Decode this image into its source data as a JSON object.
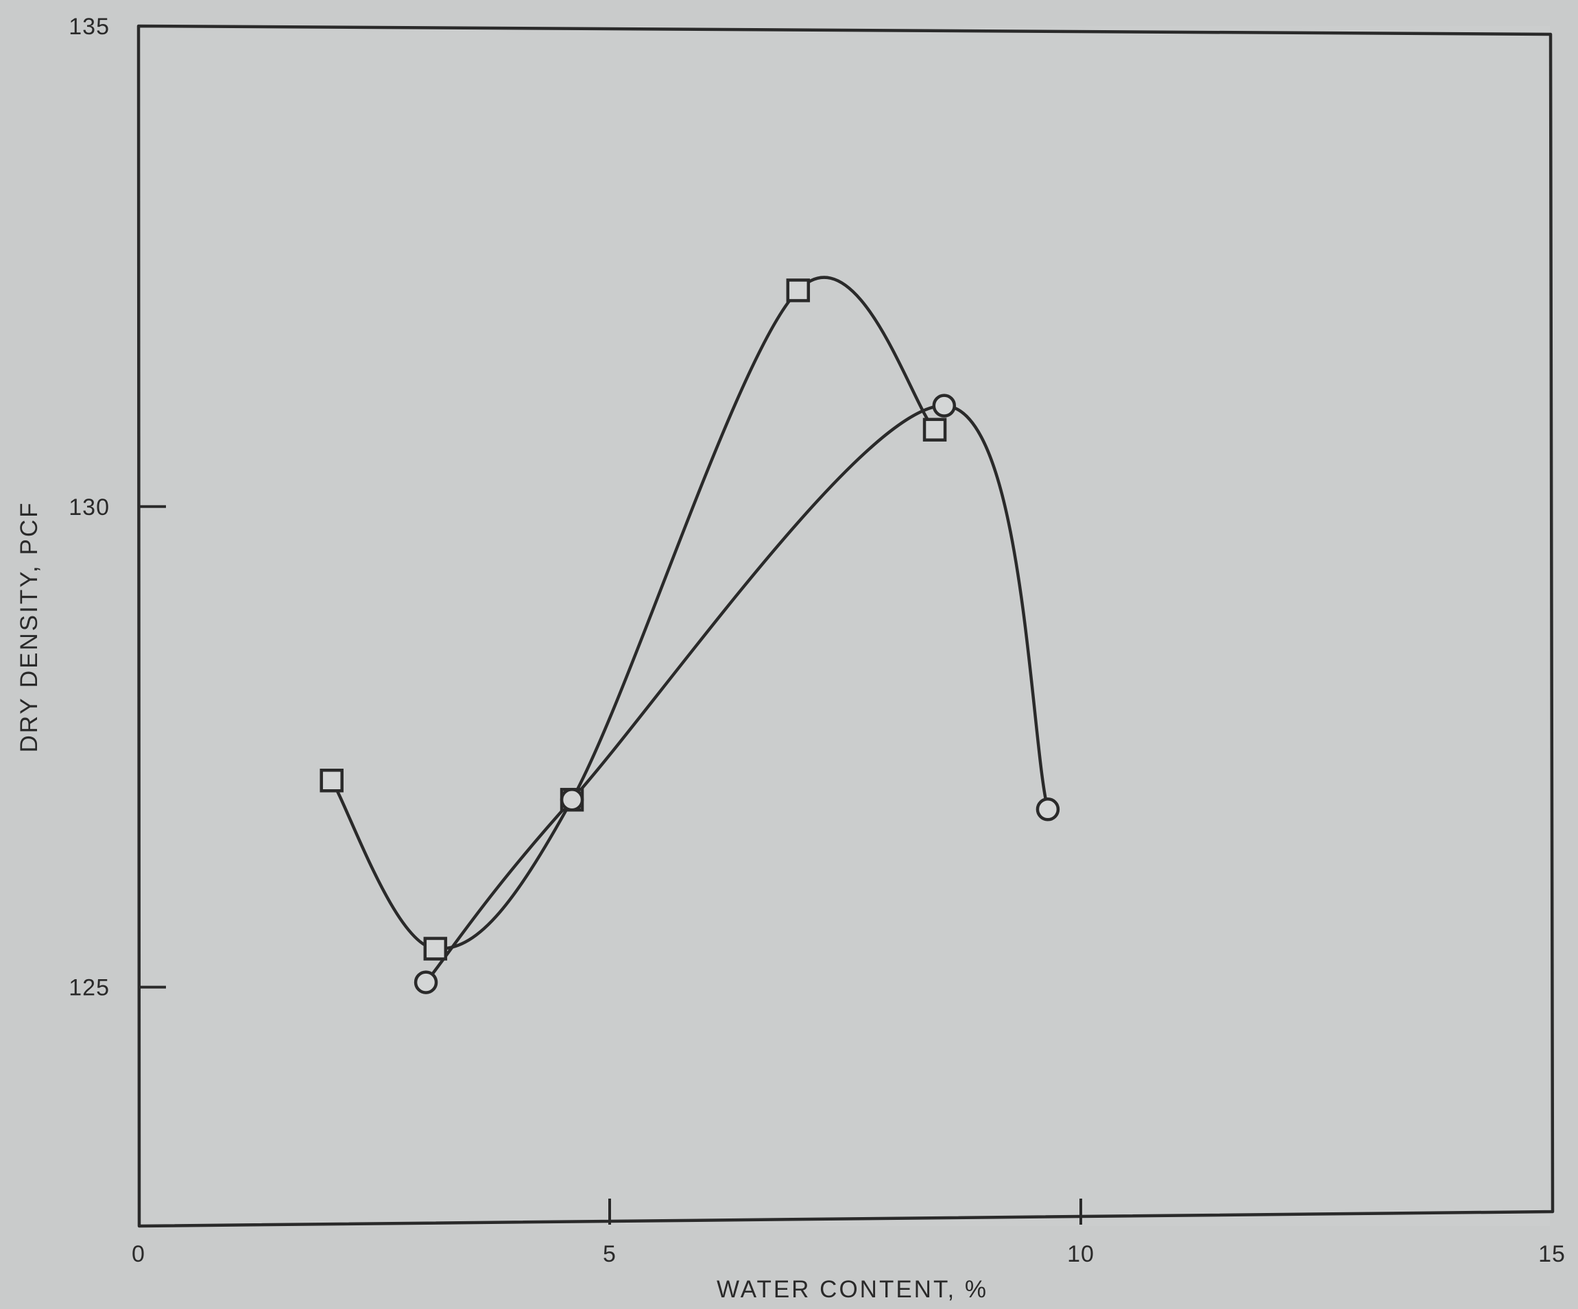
{
  "chart_data": {
    "type": "line",
    "title": "",
    "xlabel": "WATER CONTENT, %",
    "ylabel": "DRY DENSITY, PCF",
    "xlim": [
      0,
      15
    ],
    "ylim": [
      122.5,
      135
    ],
    "xticks": [
      0,
      5,
      10,
      15
    ],
    "yticks": [
      125,
      130,
      135
    ],
    "grid": false,
    "legend": "none",
    "series": [
      {
        "marker": "square",
        "x": [
          2.05,
          3.15,
          4.6,
          7.0,
          8.45
        ],
        "y": [
          127.15,
          125.4,
          126.95,
          132.25,
          130.8
        ]
      },
      {
        "marker": "circle",
        "x": [
          3.05,
          4.6,
          8.55,
          9.65
        ],
        "y": [
          125.05,
          126.95,
          131.05,
          126.85
        ]
      }
    ],
    "colors": {
      "background": "#c9cbcb",
      "ink": "#2a2a2a"
    }
  }
}
